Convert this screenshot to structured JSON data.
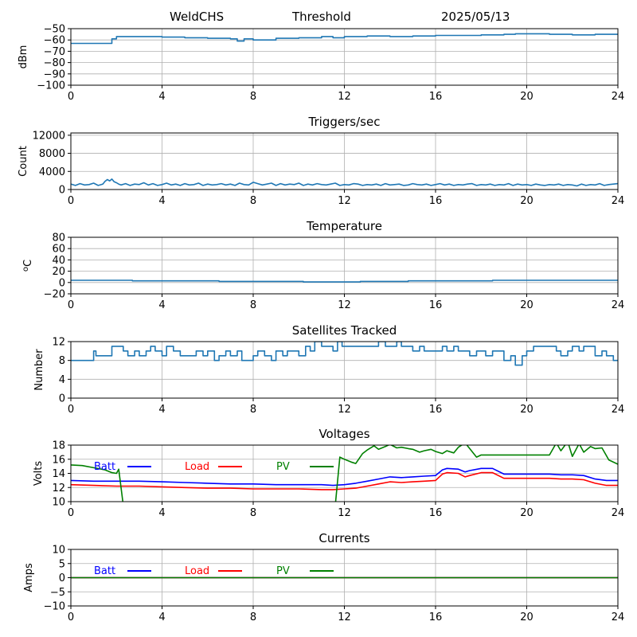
{
  "header": {
    "station": "WeldCHS",
    "mode": "Threshold",
    "date": "2025/05/13"
  },
  "colors": {
    "series": "#1f77b4",
    "batt": "#0000ff",
    "load": "#ff0000",
    "pv": "#008000",
    "grid": "#b0b0b0"
  },
  "chart_data": [
    {
      "id": "rf",
      "type": "line",
      "title": "",
      "ylabel": "dBm",
      "xlim": [
        0,
        24
      ],
      "ylim": [
        -100,
        -50
      ],
      "xticks": [
        0,
        4,
        8,
        12,
        16,
        20,
        24
      ],
      "yticks": [
        -100,
        -90,
        -80,
        -70,
        -60,
        -50
      ],
      "grid": true,
      "series": [
        {
          "name": "",
          "color": "#1f77b4",
          "step": true,
          "x": [
            0,
            1.6,
            1.8,
            2.0,
            3.0,
            4.0,
            5.0,
            6.0,
            7.0,
            7.3,
            7.6,
            8.0,
            9.0,
            10.0,
            11.0,
            11.5,
            12.0,
            13.0,
            14.0,
            15.0,
            16.0,
            17.0,
            18.0,
            19.0,
            19.5,
            20.0,
            21.0,
            22.0,
            23.0,
            24.0
          ],
          "y": [
            -63,
            -63,
            -59,
            -57,
            -57,
            -57.5,
            -58,
            -58.5,
            -59,
            -61,
            -59,
            -60,
            -58.5,
            -58,
            -57,
            -58,
            -57,
            -56.5,
            -57,
            -56.5,
            -56,
            -56,
            -55.5,
            -55,
            -54.5,
            -54.5,
            -55,
            -55.5,
            -55,
            -55
          ]
        }
      ]
    },
    {
      "id": "triggers",
      "type": "line",
      "title": "Triggers/sec",
      "ylabel": "Count",
      "xlim": [
        0,
        24
      ],
      "ylim": [
        0,
        12500
      ],
      "xticks": [
        0,
        4,
        8,
        12,
        16,
        20,
        24
      ],
      "yticks": [
        0,
        4000,
        8000,
        12000
      ],
      "grid": true,
      "series": [
        {
          "name": "",
          "color": "#1f77b4",
          "step": false,
          "x": [
            0,
            0.2,
            0.4,
            0.6,
            0.8,
            1.0,
            1.2,
            1.4,
            1.5,
            1.6,
            1.7,
            1.8,
            1.9,
            2.0,
            2.1,
            2.2,
            2.4,
            2.6,
            2.8,
            3.0,
            3.2,
            3.4,
            3.6,
            3.8,
            4.0,
            4.2,
            4.4,
            4.6,
            4.8,
            5.0,
            5.2,
            5.4,
            5.6,
            5.8,
            6.0,
            6.2,
            6.4,
            6.6,
            6.8,
            7.0,
            7.2,
            7.4,
            7.6,
            7.8,
            8.0,
            8.2,
            8.4,
            8.6,
            8.8,
            9.0,
            9.2,
            9.4,
            9.6,
            9.8,
            10.0,
            10.2,
            10.4,
            10.6,
            10.8,
            11.0,
            11.2,
            11.4,
            11.6,
            11.8,
            12.0,
            12.2,
            12.4,
            12.6,
            12.8,
            13.0,
            13.2,
            13.4,
            13.6,
            13.8,
            14.0,
            14.2,
            14.4,
            14.6,
            14.8,
            15.0,
            15.2,
            15.4,
            15.6,
            15.8,
            16.0,
            16.2,
            16.4,
            16.6,
            16.8,
            17.0,
            17.2,
            17.4,
            17.6,
            17.8,
            18.0,
            18.2,
            18.4,
            18.6,
            18.8,
            19.0,
            19.2,
            19.4,
            19.6,
            19.8,
            20.0,
            20.2,
            20.4,
            20.6,
            20.8,
            21.0,
            21.2,
            21.4,
            21.6,
            21.8,
            22.0,
            22.2,
            22.4,
            22.6,
            22.8,
            23.0,
            23.2,
            23.4,
            23.6,
            23.8,
            24.0
          ],
          "y": [
            1200,
            900,
            1300,
            1000,
            1100,
            1400,
            900,
            1200,
            1800,
            2200,
            1900,
            2300,
            1700,
            1500,
            1200,
            1000,
            1300,
            900,
            1200,
            1100,
            1500,
            1000,
            1300,
            900,
            1100,
            1400,
            1000,
            1200,
            900,
            1300,
            1000,
            1100,
            1400,
            900,
            1200,
            1000,
            1100,
            1300,
            1000,
            1200,
            900,
            1400,
            1100,
            1000,
            1600,
            1300,
            1000,
            1200,
            1400,
            900,
            1300,
            1000,
            1200,
            1100,
            1400,
            900,
            1200,
            1000,
            1300,
            1100,
            1000,
            1200,
            1400,
            900,
            1100,
            1000,
            1300,
            1200,
            900,
            1100,
            1000,
            1200,
            900,
            1300,
            1000,
            1100,
            1200,
            900,
            1000,
            1300,
            1100,
            1000,
            1200,
            900,
            1100,
            1300,
            1000,
            1200,
            900,
            1100,
            1000,
            1200,
            1300,
            900,
            1100,
            1000,
            1200,
            900,
            1100,
            1000,
            1300,
            900,
            1200,
            1000,
            1100,
            900,
            1200,
            1000,
            900,
            1100,
            1000,
            1200,
            900,
            1100,
            1000,
            800,
            1200,
            900,
            1100,
            1000,
            1300,
            900,
            1100,
            1200,
            1300
          ]
        }
      ]
    },
    {
      "id": "temp",
      "type": "line",
      "title": "Temperature",
      "ylabel": "oC",
      "xlim": [
        0,
        24
      ],
      "ylim": [
        -20,
        80
      ],
      "xticks": [
        0,
        4,
        8,
        12,
        16,
        20,
        24
      ],
      "yticks": [
        -20,
        0,
        20,
        40,
        60,
        80
      ],
      "grid": true,
      "series": [
        {
          "name": "",
          "color": "#1f77b4",
          "step": true,
          "x": [
            0,
            2.7,
            6.5,
            10.2,
            12.7,
            14.8,
            18.5,
            24
          ],
          "y": [
            4,
            3,
            2,
            1,
            2,
            3,
            4,
            4
          ]
        }
      ]
    },
    {
      "id": "sats",
      "type": "line",
      "title": "Satellites Tracked",
      "ylabel": "Number",
      "xlim": [
        0,
        24
      ],
      "ylim": [
        0,
        12
      ],
      "xticks": [
        0,
        4,
        8,
        12,
        16,
        20,
        24
      ],
      "yticks": [
        0,
        4,
        8,
        12
      ],
      "grid": true,
      "series": [
        {
          "name": "",
          "color": "#1f77b4",
          "step": true,
          "x": [
            0,
            0.7,
            1.0,
            1.1,
            1.6,
            1.8,
            2.3,
            2.5,
            2.8,
            3.0,
            3.3,
            3.5,
            3.7,
            4.0,
            4.2,
            4.5,
            4.8,
            5.3,
            5.5,
            5.8,
            6.0,
            6.3,
            6.5,
            6.8,
            7.0,
            7.3,
            7.5,
            8.0,
            8.2,
            8.5,
            8.8,
            9.0,
            9.3,
            9.5,
            10.0,
            10.3,
            10.5,
            10.7,
            11.0,
            11.5,
            11.7,
            11.9,
            12.3,
            13.0,
            13.5,
            13.8,
            14.3,
            14.5,
            15.0,
            15.3,
            15.5,
            16.0,
            16.3,
            16.5,
            16.8,
            17.0,
            17.5,
            17.8,
            18.2,
            18.5,
            19.0,
            19.3,
            19.5,
            19.8,
            20.0,
            20.3,
            20.8,
            21.3,
            21.5,
            21.8,
            22.0,
            22.3,
            22.5,
            23.0,
            23.3,
            23.5,
            23.8,
            24
          ],
          "y": [
            8,
            8,
            10,
            9,
            9,
            11,
            10,
            9,
            10,
            9,
            10,
            11,
            10,
            9,
            11,
            10,
            9,
            9,
            10,
            9,
            10,
            8,
            9,
            10,
            9,
            10,
            8,
            9,
            10,
            9,
            8,
            10,
            9,
            10,
            9,
            11,
            10,
            12,
            11,
            10,
            12,
            11,
            11,
            11,
            12,
            11,
            12,
            11,
            10,
            11,
            10,
            10,
            11,
            10,
            11,
            10,
            9,
            10,
            9,
            10,
            8,
            9,
            7,
            9,
            10,
            11,
            11,
            10,
            9,
            10,
            11,
            10,
            11,
            9,
            10,
            9,
            8,
            8
          ]
        }
      ]
    },
    {
      "id": "volts",
      "type": "line",
      "title": "Voltages",
      "ylabel": "Volts",
      "xlim": [
        0,
        24
      ],
      "ylim": [
        10,
        18
      ],
      "xticks": [
        0,
        4,
        8,
        12,
        16,
        20,
        24
      ],
      "yticks": [
        10,
        12,
        14,
        16,
        18
      ],
      "grid": true,
      "legend": [
        "Batt",
        "Load",
        "PV"
      ],
      "series": [
        {
          "name": "Batt",
          "color": "#0000ff",
          "step": false,
          "x": [
            0,
            1,
            2,
            3,
            4,
            5,
            6,
            7,
            8,
            9,
            10,
            11,
            11.5,
            12,
            12.5,
            13,
            13.5,
            14,
            14.5,
            15,
            15.5,
            16,
            16.3,
            16.5,
            17,
            17.3,
            17.5,
            18,
            18.5,
            19,
            20,
            21,
            21.5,
            22,
            22.5,
            23,
            23.5,
            24
          ],
          "y": [
            13,
            12.9,
            12.9,
            12.9,
            12.8,
            12.7,
            12.6,
            12.5,
            12.5,
            12.4,
            12.4,
            12.4,
            12.3,
            12.4,
            12.6,
            12.9,
            13.2,
            13.5,
            13.4,
            13.5,
            13.6,
            13.7,
            14.5,
            14.7,
            14.6,
            14.2,
            14.4,
            14.7,
            14.7,
            13.9,
            13.9,
            13.9,
            13.8,
            13.8,
            13.7,
            13.2,
            13,
            13
          ]
        },
        {
          "name": "Load",
          "color": "#ff0000",
          "step": false,
          "x": [
            0,
            1,
            2,
            3,
            4,
            5,
            6,
            7,
            8,
            9,
            10,
            11,
            11.5,
            12,
            12.5,
            13,
            13.5,
            14,
            14.5,
            15,
            15.5,
            16,
            16.3,
            16.5,
            17,
            17.3,
            17.5,
            18,
            18.5,
            19,
            20,
            21,
            21.5,
            22,
            22.5,
            23,
            23.5,
            24
          ],
          "y": [
            12.4,
            12.3,
            12.2,
            12.2,
            12.1,
            12.0,
            11.9,
            11.9,
            11.8,
            11.8,
            11.8,
            11.7,
            11.7,
            11.8,
            11.9,
            12.2,
            12.5,
            12.8,
            12.7,
            12.8,
            12.9,
            13.0,
            13.9,
            14.1,
            14,
            13.5,
            13.7,
            14.1,
            14.1,
            13.3,
            13.3,
            13.3,
            13.2,
            13.2,
            13.1,
            12.6,
            12.3,
            12.3
          ]
        },
        {
          "name": "PV",
          "color": "#008000",
          "step": false,
          "x": [
            0,
            0.5,
            1.0,
            1.5,
            1.8,
            2.0,
            2.1,
            2.3,
            11.6,
            11.8,
            12.0,
            12.3,
            12.5,
            12.8,
            13.0,
            13.3,
            13.5,
            13.8,
            14.0,
            14.3,
            14.5,
            14.8,
            15.0,
            15.3,
            15.5,
            15.8,
            16.0,
            16.3,
            16.5,
            16.8,
            17.0,
            17.3,
            17.5,
            17.8,
            18.0,
            21.0,
            21.3,
            21.5,
            21.8,
            22.0,
            22.3,
            22.5,
            22.8,
            23.0,
            23.3,
            23.6,
            24
          ],
          "y": [
            15.2,
            15.1,
            14.8,
            14.5,
            14.1,
            14.0,
            14.6,
            9.5,
            9.5,
            16.3,
            16.0,
            15.6,
            15.4,
            16.8,
            17.3,
            17.9,
            17.4,
            17.8,
            18.1,
            17.6,
            17.7,
            17.5,
            17.4,
            17.0,
            17.2,
            17.4,
            17.1,
            16.8,
            17.2,
            16.9,
            17.7,
            18.3,
            17.5,
            16.3,
            16.6,
            16.6,
            18.3,
            17.2,
            18.5,
            16.4,
            18.2,
            17.0,
            17.8,
            17.5,
            17.6,
            15.9,
            15.3
          ]
        }
      ]
    },
    {
      "id": "amps",
      "type": "line",
      "title": "Currents",
      "ylabel": "Amps",
      "xlim": [
        0,
        24
      ],
      "ylim": [
        -10,
        10
      ],
      "xticks": [
        0,
        4,
        8,
        12,
        16,
        20,
        24
      ],
      "yticks": [
        -10,
        -5,
        0,
        5,
        10
      ],
      "grid": true,
      "legend": [
        "Batt",
        "Load",
        "PV"
      ],
      "series": [
        {
          "name": "Batt",
          "color": "#0000ff",
          "step": false,
          "x": [
            0,
            24
          ],
          "y": [
            0,
            0
          ]
        },
        {
          "name": "Load",
          "color": "#ff0000",
          "step": false,
          "x": [
            0,
            24
          ],
          "y": [
            0,
            0
          ]
        },
        {
          "name": "PV",
          "color": "#008000",
          "step": false,
          "x": [
            0,
            24
          ],
          "y": [
            0,
            0
          ]
        }
      ]
    }
  ]
}
